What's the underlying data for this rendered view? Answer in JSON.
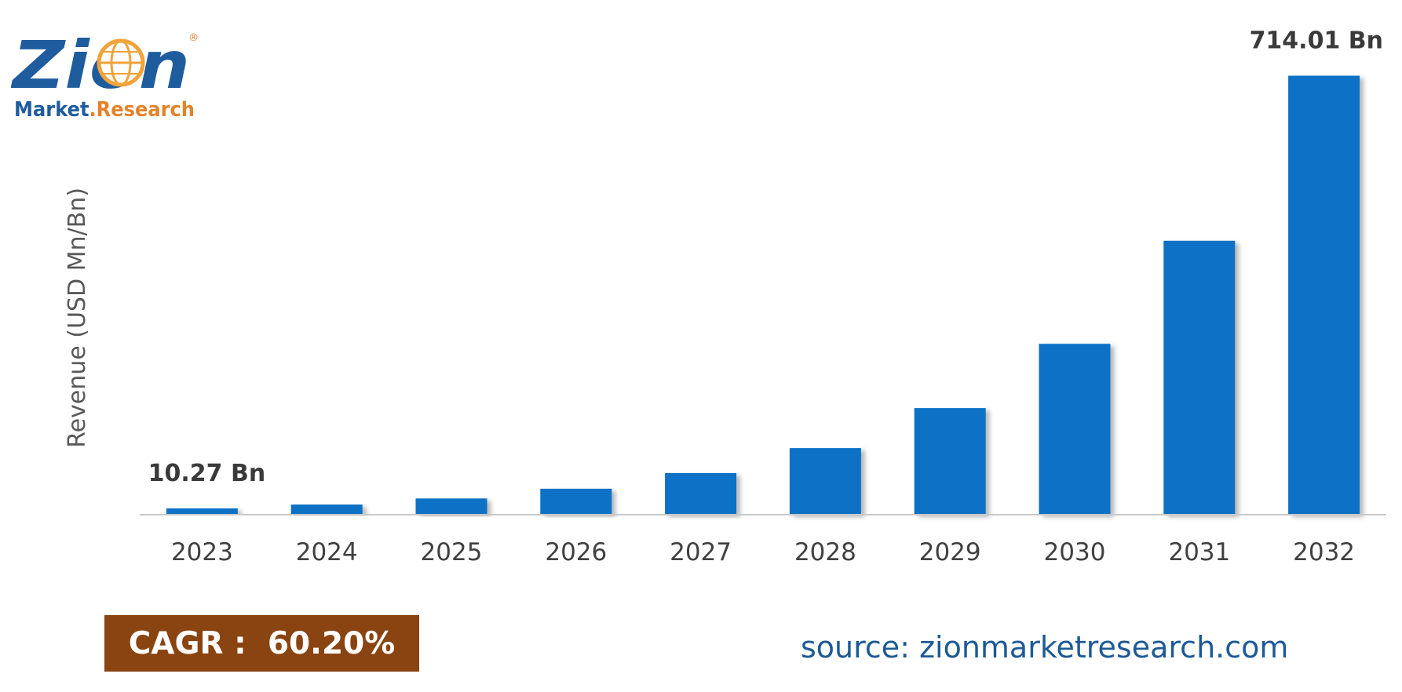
{
  "logo": {
    "brand": "Zion",
    "registered_mark": "®",
    "tagline_part1": "Market",
    "tagline_sep": ".",
    "tagline_part2": "Research",
    "colors": {
      "brand_blue": "#1f5c9e",
      "tagline_blue": "#1f5c9e",
      "tagline_orange": "#e3832a",
      "globe_orange": "#f0a33a"
    }
  },
  "chart_data": {
    "type": "bar",
    "categories": [
      "2023",
      "2024",
      "2025",
      "2026",
      "2027",
      "2028",
      "2029",
      "2030",
      "2031",
      "2032"
    ],
    "values": [
      10.27,
      16.5,
      26.4,
      42.2,
      67.6,
      108.3,
      173.5,
      278.0,
      445.6,
      714.01
    ],
    "ylabel": "Revenue (USD Mn/Bn)",
    "ylim": [
      0,
      730
    ],
    "data_labels": [
      {
        "category": "2023",
        "text": "10.27 Bn"
      },
      {
        "category": "2032",
        "text": "714.01 Bn"
      }
    ],
    "grid": false,
    "bar_color": "#0e72c6",
    "axis_color": "#c9c9c9"
  },
  "cagr": {
    "text": "CAGR :  60.20%",
    "background": "#8a4411"
  },
  "source": {
    "text": "source: zionmarketresearch.com"
  }
}
